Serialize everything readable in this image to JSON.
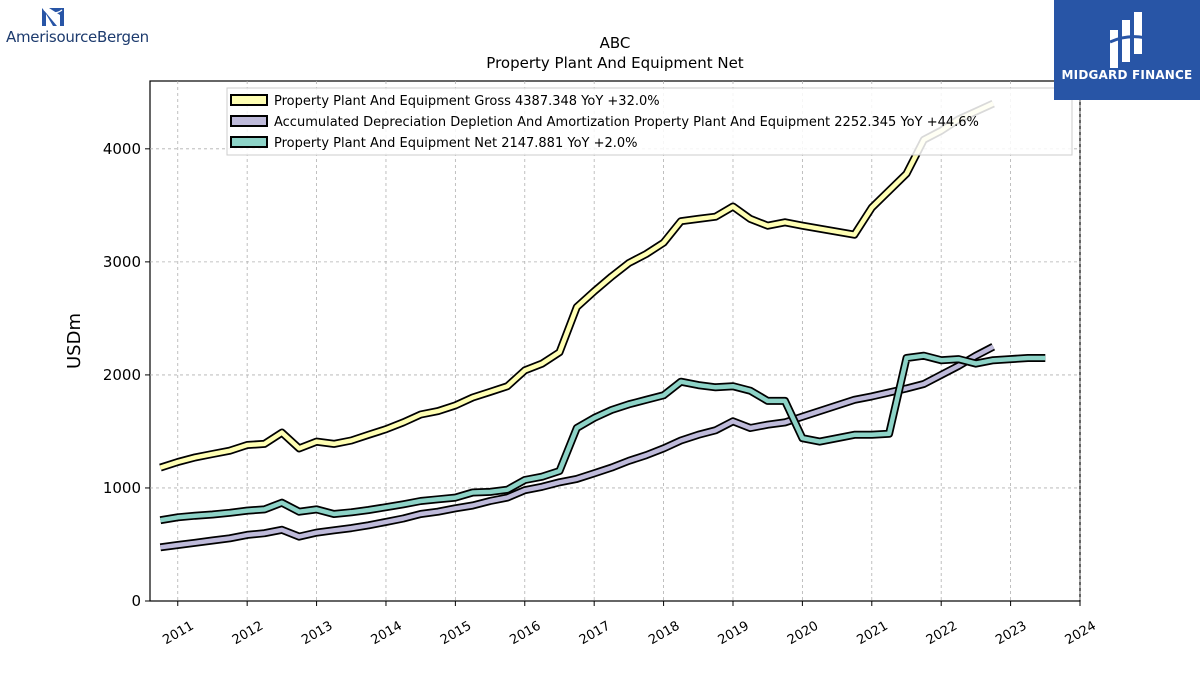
{
  "brand_left": {
    "name": "AmerisourceBergen"
  },
  "brand_right": {
    "name": "MIDGARD FINANCE"
  },
  "chart_data": {
    "type": "line",
    "title": "ABC",
    "subtitle": "Property Plant And Equipment Net",
    "ylabel": "USDm",
    "xlabel": "",
    "xlim": [
      2010.6,
      2024.0
    ],
    "ylim": [
      0,
      4600
    ],
    "yticks": [
      0,
      1000,
      2000,
      3000,
      4000
    ],
    "xticks": [
      2011,
      2012,
      2013,
      2014,
      2015,
      2016,
      2017,
      2018,
      2019,
      2020,
      2021,
      2022,
      2023,
      2024
    ],
    "grid": true,
    "legend_position": "top",
    "series": [
      {
        "name": "Property Plant And Equipment Gross",
        "legend": "Property Plant And Equipment Gross  4387.348 YoY +32.0%",
        "color": "#ffffb3",
        "points": [
          [
            2010.75,
            1180
          ],
          [
            2011.0,
            1230
          ],
          [
            2011.25,
            1270
          ],
          [
            2011.5,
            1300
          ],
          [
            2011.75,
            1330
          ],
          [
            2012.0,
            1380
          ],
          [
            2012.25,
            1390
          ],
          [
            2012.5,
            1490
          ],
          [
            2012.75,
            1350
          ],
          [
            2013.0,
            1410
          ],
          [
            2013.25,
            1390
          ],
          [
            2013.5,
            1420
          ],
          [
            2013.75,
            1470
          ],
          [
            2014.0,
            1520
          ],
          [
            2014.25,
            1580
          ],
          [
            2014.5,
            1650
          ],
          [
            2014.75,
            1680
          ],
          [
            2015.0,
            1730
          ],
          [
            2015.25,
            1800
          ],
          [
            2015.5,
            1850
          ],
          [
            2015.75,
            1900
          ],
          [
            2016.0,
            2040
          ],
          [
            2016.25,
            2100
          ],
          [
            2016.5,
            2200
          ],
          [
            2016.75,
            2600
          ],
          [
            2017.0,
            2740
          ],
          [
            2017.25,
            2870
          ],
          [
            2017.5,
            2990
          ],
          [
            2017.75,
            3070
          ],
          [
            2018.0,
            3170
          ],
          [
            2018.25,
            3360
          ],
          [
            2018.5,
            3380
          ],
          [
            2018.75,
            3400
          ],
          [
            2019.0,
            3490
          ],
          [
            2019.25,
            3380
          ],
          [
            2019.5,
            3320
          ],
          [
            2019.75,
            3350
          ],
          [
            2020.0,
            3320
          ],
          [
            2020.75,
            3240
          ],
          [
            2021.0,
            3480
          ],
          [
            2021.5,
            3780
          ],
          [
            2021.75,
            4080
          ],
          [
            2022.0,
            4160
          ],
          [
            2022.25,
            4260
          ],
          [
            2022.5,
            4330
          ],
          [
            2022.75,
            4400
          ]
        ]
      },
      {
        "name": "Accumulated Depreciation Depletion And Amortization Property Plant And Equipment",
        "legend": "Accumulated Depreciation Depletion And Amortization Property Plant And Equipment  2252.345 YoY +44.6%",
        "color": "#bebada",
        "points": [
          [
            2010.75,
            475
          ],
          [
            2011.0,
            495
          ],
          [
            2011.25,
            515
          ],
          [
            2011.5,
            535
          ],
          [
            2011.75,
            555
          ],
          [
            2012.0,
            585
          ],
          [
            2012.25,
            600
          ],
          [
            2012.5,
            630
          ],
          [
            2012.75,
            570
          ],
          [
            2013.0,
            605
          ],
          [
            2013.25,
            625
          ],
          [
            2013.5,
            645
          ],
          [
            2013.75,
            670
          ],
          [
            2014.0,
            700
          ],
          [
            2014.25,
            730
          ],
          [
            2014.5,
            770
          ],
          [
            2014.75,
            790
          ],
          [
            2015.0,
            820
          ],
          [
            2015.25,
            845
          ],
          [
            2015.5,
            885
          ],
          [
            2015.75,
            915
          ],
          [
            2016.0,
            980
          ],
          [
            2016.25,
            1010
          ],
          [
            2016.5,
            1050
          ],
          [
            2016.75,
            1080
          ],
          [
            2017.0,
            1130
          ],
          [
            2017.25,
            1180
          ],
          [
            2017.5,
            1240
          ],
          [
            2017.75,
            1290
          ],
          [
            2018.0,
            1350
          ],
          [
            2018.25,
            1420
          ],
          [
            2018.5,
            1470
          ],
          [
            2018.75,
            1510
          ],
          [
            2019.0,
            1590
          ],
          [
            2019.25,
            1530
          ],
          [
            2019.5,
            1560
          ],
          [
            2019.75,
            1580
          ],
          [
            2020.0,
            1630
          ],
          [
            2020.75,
            1780
          ],
          [
            2021.0,
            1810
          ],
          [
            2021.5,
            1880
          ],
          [
            2021.75,
            1920
          ],
          [
            2022.0,
            2000
          ],
          [
            2022.25,
            2080
          ],
          [
            2022.5,
            2170
          ],
          [
            2022.75,
            2250
          ]
        ]
      },
      {
        "name": "Property Plant And Equipment Net",
        "legend": "Property Plant And Equipment Net  2147.881 YoY +2.0%",
        "color": "#8dd3c7",
        "points": [
          [
            2010.75,
            715
          ],
          [
            2011.0,
            740
          ],
          [
            2011.25,
            755
          ],
          [
            2011.5,
            765
          ],
          [
            2011.75,
            780
          ],
          [
            2012.0,
            800
          ],
          [
            2012.25,
            810
          ],
          [
            2012.5,
            870
          ],
          [
            2012.75,
            790
          ],
          [
            2013.0,
            810
          ],
          [
            2013.25,
            770
          ],
          [
            2013.5,
            785
          ],
          [
            2013.75,
            805
          ],
          [
            2014.0,
            830
          ],
          [
            2014.25,
            855
          ],
          [
            2014.5,
            885
          ],
          [
            2014.75,
            900
          ],
          [
            2015.0,
            915
          ],
          [
            2015.25,
            960
          ],
          [
            2015.5,
            965
          ],
          [
            2015.75,
            985
          ],
          [
            2016.0,
            1070
          ],
          [
            2016.25,
            1100
          ],
          [
            2016.5,
            1150
          ],
          [
            2016.75,
            1530
          ],
          [
            2017.0,
            1620
          ],
          [
            2017.25,
            1690
          ],
          [
            2017.5,
            1740
          ],
          [
            2017.75,
            1780
          ],
          [
            2018.0,
            1820
          ],
          [
            2018.25,
            1940
          ],
          [
            2018.5,
            1910
          ],
          [
            2018.75,
            1890
          ],
          [
            2019.0,
            1900
          ],
          [
            2019.25,
            1860
          ],
          [
            2019.5,
            1770
          ],
          [
            2019.75,
            1770
          ],
          [
            2020.0,
            1440
          ],
          [
            2020.25,
            1410
          ],
          [
            2020.5,
            1440
          ],
          [
            2020.75,
            1470
          ],
          [
            2021.0,
            1470
          ],
          [
            2021.25,
            1480
          ],
          [
            2021.5,
            2150
          ],
          [
            2021.75,
            2170
          ],
          [
            2022.0,
            2130
          ],
          [
            2022.25,
            2140
          ],
          [
            2022.5,
            2100
          ],
          [
            2022.75,
            2130
          ],
          [
            2023.0,
            2140
          ],
          [
            2023.25,
            2150
          ],
          [
            2023.5,
            2150
          ]
        ]
      }
    ]
  }
}
